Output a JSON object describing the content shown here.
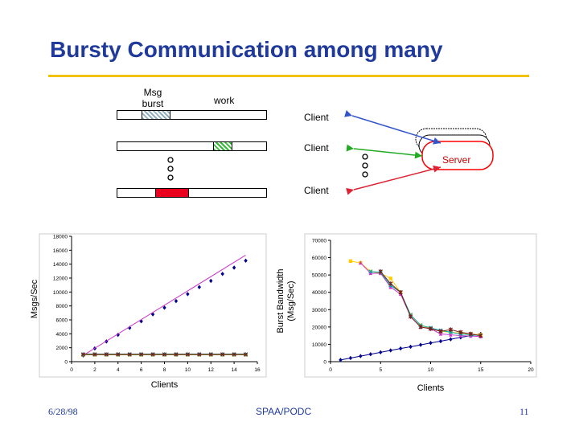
{
  "slide": {
    "title": "Bursty Communication among many",
    "colors": {
      "title": "#1f3a9a",
      "rule": "#f2c200"
    }
  },
  "diagram": {
    "msg_burst_label": "Msg\nburst",
    "work_label": "work",
    "client_labels": [
      "Client",
      "Client",
      "Client"
    ],
    "server_label": "Server",
    "ellipsis_icon": "vertical-dots-icon"
  },
  "footer": {
    "date": "6/28/98",
    "venue": "SPAA/PODC",
    "page": "11"
  },
  "chart_data": [
    {
      "type": "line",
      "title": "",
      "xlabel": "Clients",
      "ylabel": "Msgs/Sec",
      "xlim": [
        0,
        16
      ],
      "ylim": [
        0,
        18000
      ],
      "xticks": [
        0,
        2,
        4,
        6,
        8,
        10,
        12,
        14,
        16
      ],
      "yticks": [
        0,
        2000,
        4000,
        6000,
        8000,
        10000,
        12000,
        14000,
        16000,
        18000
      ],
      "grid": false,
      "series": [
        {
          "color": "#00008b",
          "marker": "diamond",
          "line": false,
          "x": [
            1,
            2,
            3,
            4,
            5,
            6,
            7,
            8,
            9,
            10,
            11,
            12,
            13,
            14,
            15
          ],
          "y": [
            900,
            1900,
            2900,
            3850,
            4850,
            5800,
            6800,
            7750,
            8700,
            9700,
            10700,
            11600,
            12600,
            13500,
            14500
          ]
        },
        {
          "color": "#cc33cc",
          "marker": "none",
          "line": true,
          "x": [
            1,
            15
          ],
          "y": [
            900,
            15300
          ]
        },
        {
          "color": "#888800",
          "marker": "square",
          "line": true,
          "x": [
            1,
            2,
            3,
            4,
            5,
            6,
            7,
            8,
            9,
            10,
            11,
            12,
            13,
            14,
            15
          ],
          "y": [
            1000,
            1000,
            1000,
            1000,
            1000,
            1000,
            1000,
            1000,
            1000,
            1000,
            1000,
            1000,
            1000,
            1000,
            1000
          ]
        },
        {
          "color": "#00aaaa",
          "marker": "triangle",
          "line": true,
          "x": [
            1,
            2,
            3,
            4,
            5,
            6,
            7,
            8,
            9,
            10,
            11,
            12,
            13,
            14,
            15
          ],
          "y": [
            1100,
            1100,
            1100,
            1100,
            1100,
            1100,
            1100,
            1100,
            1100,
            1100,
            1100,
            1100,
            1100,
            1100,
            1100
          ]
        },
        {
          "color": "#7a1f1f",
          "marker": "x",
          "line": true,
          "x": [
            1,
            2,
            3,
            4,
            5,
            6,
            7,
            8,
            9,
            10,
            11,
            12,
            13,
            14,
            15
          ],
          "y": [
            1050,
            1050,
            1050,
            1050,
            1050,
            1050,
            1050,
            1050,
            1050,
            1050,
            1050,
            1050,
            1050,
            1050,
            1050
          ]
        }
      ]
    },
    {
      "type": "line",
      "title": "",
      "xlabel": "Clients",
      "ylabel": "Burst Bandwidth\n(Msg/Sec)",
      "xlim": [
        0,
        20
      ],
      "ylim": [
        0,
        70000
      ],
      "xticks": [
        0,
        5,
        10,
        15,
        20
      ],
      "yticks": [
        0,
        10000,
        20000,
        30000,
        40000,
        50000,
        60000,
        70000
      ],
      "grid": false,
      "series": [
        {
          "color": "#00008b",
          "marker": "diamond",
          "line": true,
          "x": [
            1,
            2,
            3,
            4,
            5,
            6,
            7,
            8,
            9,
            10,
            11,
            12,
            13,
            14,
            15
          ],
          "y": [
            1000,
            2100,
            3200,
            4300,
            5400,
            6500,
            7600,
            8600,
            9700,
            10800,
            11800,
            12900,
            14000,
            15000,
            16000
          ]
        },
        {
          "color": "#ffcc00",
          "marker": "square",
          "line": true,
          "x": [
            2,
            3,
            4,
            5,
            6,
            7,
            8,
            9,
            10,
            11,
            12,
            13,
            14,
            15
          ],
          "y": [
            58000,
            57000,
            52000,
            51000,
            48000,
            40000,
            27000,
            21000,
            19000,
            17500,
            17000,
            16500,
            16000,
            15500
          ]
        },
        {
          "color": "#cc33cc",
          "marker": "triangle",
          "line": true,
          "x": [
            3,
            4,
            5,
            6,
            7,
            8,
            9,
            10,
            11,
            12,
            13,
            14,
            15
          ],
          "y": [
            57000,
            51000,
            51000,
            43000,
            39000,
            26000,
            20000,
            19000,
            16000,
            15500,
            15000,
            14800,
            14500
          ]
        },
        {
          "color": "#00aaaa",
          "marker": "x",
          "line": true,
          "x": [
            4,
            5,
            6,
            7,
            8,
            9,
            10,
            11,
            12,
            13,
            14,
            15
          ],
          "y": [
            52000,
            51500,
            44000,
            40000,
            27000,
            21000,
            19500,
            18000,
            17000,
            16000,
            15500,
            15000
          ]
        },
        {
          "color": "#7a1f1f",
          "marker": "star",
          "line": true,
          "x": [
            5,
            6,
            7,
            8,
            9,
            10,
            11,
            12,
            13,
            14,
            15
          ],
          "y": [
            52000,
            45000,
            40000,
            26000,
            20000,
            19000,
            17500,
            18500,
            17000,
            16000,
            15000
          ]
        }
      ]
    }
  ]
}
